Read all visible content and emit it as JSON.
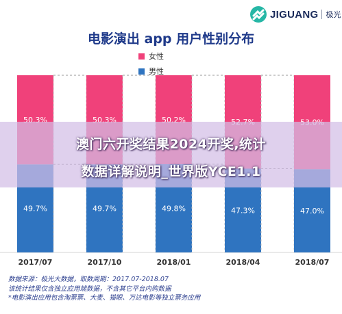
{
  "brand": {
    "name": "JIGUANG",
    "name_cn": "极光"
  },
  "banner": {
    "line1": "澳门六开奖结果2024开奖,统计",
    "line2": "数据详解说明_世界版YCE1.1"
  },
  "notes": [
    "数据来源：极光大数据，取数周期：2017.07-2018.07",
    "该统计结果仅含独立应用端数据，不含其它平台内购数据",
    "*电影演出应用包含淘票票、大麦、猫眼、万达电影等独立票务应用"
  ],
  "chart_data": {
    "type": "bar",
    "stacked": true,
    "title": "电影演出 app 用户性别分布",
    "categories": [
      "2017/07",
      "2017/10",
      "2018/01",
      "2018/04",
      "2018/07"
    ],
    "series": [
      {
        "name": "女性",
        "color": "#f0417a",
        "values": [
          50.3,
          50.3,
          50.2,
          52.7,
          53.0
        ],
        "labels": [
          "50.3%",
          "50.3%",
          "50.2%",
          "52.7%",
          "53.0%"
        ]
      },
      {
        "name": "男性",
        "color": "#2f74c0",
        "values": [
          49.7,
          49.7,
          49.8,
          47.3,
          47.0
        ],
        "labels": [
          "49.7%",
          "49.7%",
          "49.8%",
          "47.3%",
          "47.0%"
        ]
      }
    ],
    "ylim": [
      0,
      100
    ],
    "legend_position": "top-left",
    "grid": false
  }
}
